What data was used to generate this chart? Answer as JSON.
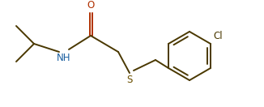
{
  "bg_color": "#ffffff",
  "line_color": "#4a3800",
  "N_color": "#1a5fa0",
  "O_color": "#b03000",
  "S_color": "#6b5000",
  "lw": 1.4,
  "fs": 8.5,
  "figsize": [
    3.26,
    1.32
  ],
  "dpi": 100,
  "xlim": [
    0,
    326
  ],
  "ylim": [
    0,
    132
  ]
}
